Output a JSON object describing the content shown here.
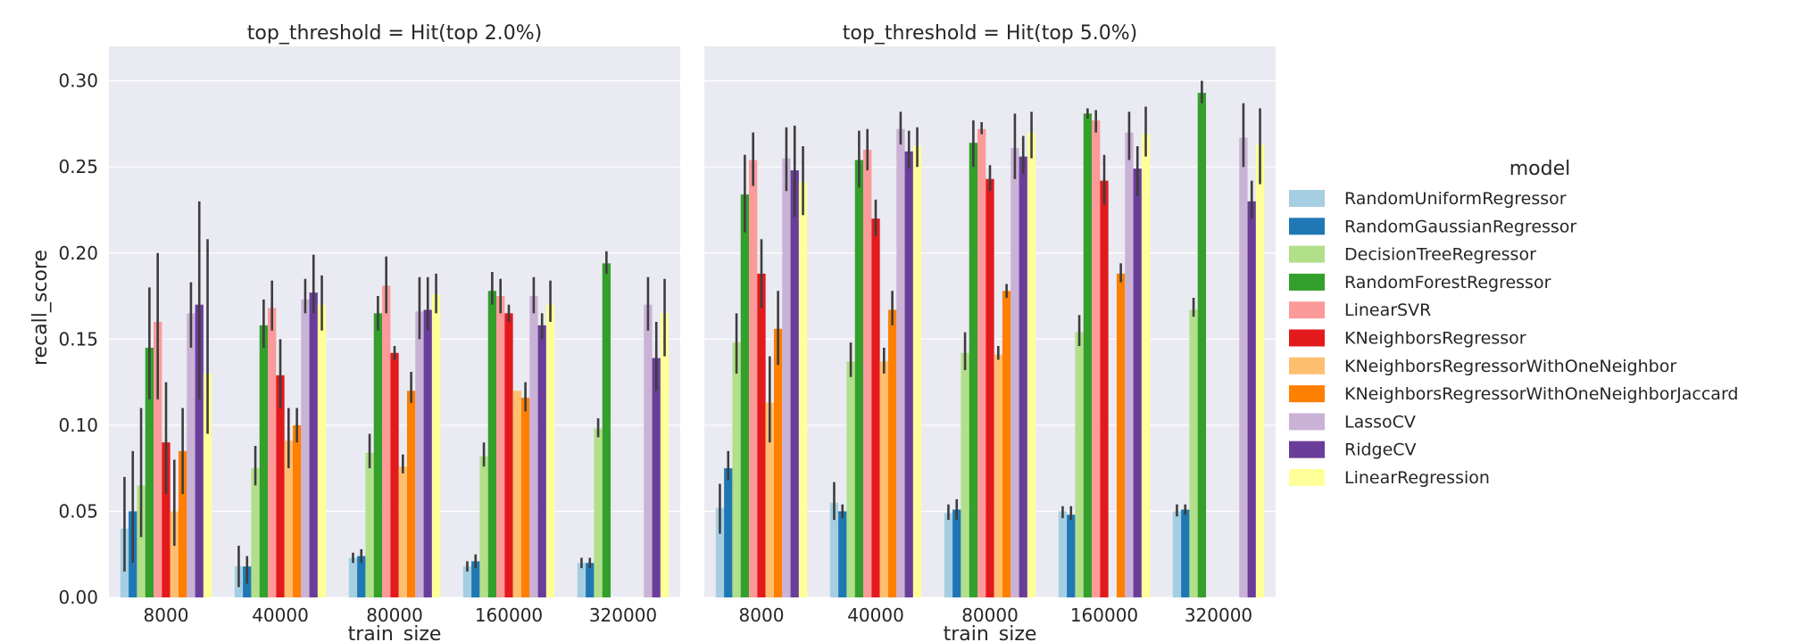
{
  "chart_data": {
    "type": "bar",
    "xlabel": "train_size",
    "ylabel": "recall_score",
    "ylim": [
      0,
      0.32
    ],
    "yticks": [
      "0.00",
      "0.05",
      "0.10",
      "0.15",
      "0.20",
      "0.25",
      "0.30"
    ],
    "ytick_values": [
      0,
      0.05,
      0.1,
      0.15,
      0.2,
      0.25,
      0.3
    ],
    "categories": [
      "8000",
      "40000",
      "80000",
      "160000",
      "320000"
    ],
    "grid": true,
    "legend": {
      "title": "model",
      "position": "right",
      "entries": [
        {
          "name": "RandomUniformRegressor",
          "color": "#a6cee3"
        },
        {
          "name": "RandomGaussianRegressor",
          "color": "#1f78b4"
        },
        {
          "name": "DecisionTreeRegressor",
          "color": "#b2df8a"
        },
        {
          "name": "RandomForestRegressor",
          "color": "#33a02c"
        },
        {
          "name": "LinearSVR",
          "color": "#fb9a99"
        },
        {
          "name": "KNeighborsRegressor",
          "color": "#e31a1c"
        },
        {
          "name": "KNeighborsRegressorWithOneNeighbor",
          "color": "#fdbf6f"
        },
        {
          "name": "KNeighborsRegressorWithOneNeighborJaccard",
          "color": "#ff7f00"
        },
        {
          "name": "LassoCV",
          "color": "#cab2d6"
        },
        {
          "name": "RidgeCV",
          "color": "#6a3d9a"
        },
        {
          "name": "LinearRegression",
          "color": "#ffff99"
        }
      ]
    },
    "panels": [
      {
        "title": "top_threshold = Hit(top 2.0%)",
        "series_values": [
          [
            0.04,
            0.018,
            0.023,
            0.018,
            0.02
          ],
          [
            0.05,
            0.018,
            0.024,
            0.021,
            0.02
          ],
          [
            0.065,
            0.075,
            0.084,
            0.082,
            0.098
          ],
          [
            0.145,
            0.158,
            0.165,
            0.178,
            0.194
          ],
          [
            0.16,
            0.168,
            0.181,
            0.175,
            null
          ],
          [
            0.09,
            0.129,
            0.142,
            0.165,
            null
          ],
          [
            0.05,
            0.091,
            0.076,
            0.12,
            null
          ],
          [
            0.085,
            0.1,
            0.12,
            0.116,
            null
          ],
          [
            0.165,
            0.173,
            0.166,
            0.175,
            0.17
          ],
          [
            0.17,
            0.177,
            0.167,
            0.158,
            0.139
          ],
          [
            0.13,
            0.17,
            0.176,
            0.17,
            0.165
          ]
        ],
        "series_errors": [
          [
            [
              0.015,
              0.07
            ],
            [
              0.006,
              0.03
            ],
            [
              0.02,
              0.026
            ],
            [
              0.015,
              0.021
            ],
            [
              0.017,
              0.023
            ]
          ],
          [
            [
              0.02,
              0.085
            ],
            [
              0.008,
              0.024
            ],
            [
              0.02,
              0.028
            ],
            [
              0.017,
              0.025
            ],
            [
              0.017,
              0.023
            ]
          ],
          [
            [
              0.035,
              0.11
            ],
            [
              0.065,
              0.088
            ],
            [
              0.075,
              0.095
            ],
            [
              0.076,
              0.09
            ],
            [
              0.093,
              0.104
            ]
          ],
          [
            [
              0.115,
              0.18
            ],
            [
              0.145,
              0.173
            ],
            [
              0.155,
              0.175
            ],
            [
              0.17,
              0.189
            ],
            [
              0.188,
              0.201
            ]
          ],
          [
            [
              0.115,
              0.2
            ],
            [
              0.155,
              0.184
            ],
            [
              0.165,
              0.198
            ],
            [
              0.165,
              0.185
            ],
            null
          ],
          [
            [
              0.06,
              0.125
            ],
            [
              0.11,
              0.15
            ],
            [
              0.138,
              0.146
            ],
            [
              0.16,
              0.17
            ],
            null
          ],
          [
            [
              0.03,
              0.08
            ],
            [
              0.075,
              0.11
            ],
            [
              0.072,
              0.083
            ],
            [
              0.12,
              0.12
            ],
            null
          ],
          [
            [
              0.06,
              0.11
            ],
            [
              0.09,
              0.11
            ],
            [
              0.113,
              0.131
            ],
            [
              0.108,
              0.125
            ],
            null
          ],
          [
            [
              0.145,
              0.183
            ],
            [
              0.165,
              0.185
            ],
            [
              0.15,
              0.186
            ],
            [
              0.165,
              0.186
            ],
            [
              0.155,
              0.186
            ]
          ],
          [
            [
              0.115,
              0.23
            ],
            [
              0.165,
              0.199
            ],
            [
              0.155,
              0.186
            ],
            [
              0.15,
              0.165
            ],
            [
              0.12,
              0.16
            ]
          ],
          [
            [
              0.095,
              0.208
            ],
            [
              0.155,
              0.187
            ],
            [
              0.165,
              0.188
            ],
            [
              0.16,
              0.184
            ],
            [
              0.14,
              0.185
            ]
          ]
        ]
      },
      {
        "title": "top_threshold = Hit(top 5.0%)",
        "series_values": [
          [
            0.052,
            0.055,
            0.049,
            0.05,
            0.05
          ],
          [
            0.075,
            0.05,
            0.051,
            0.048,
            0.051
          ],
          [
            0.148,
            0.137,
            0.142,
            0.154,
            0.167
          ],
          [
            0.234,
            0.254,
            0.264,
            0.281,
            0.293
          ],
          [
            0.254,
            0.26,
            0.272,
            0.277,
            null
          ],
          [
            0.188,
            0.22,
            0.243,
            0.242,
            null
          ],
          [
            0.113,
            0.137,
            0.141,
            null,
            null
          ],
          [
            0.156,
            0.167,
            0.178,
            0.188,
            null
          ],
          [
            0.255,
            0.272,
            0.261,
            0.27,
            0.267
          ],
          [
            0.248,
            0.259,
            0.256,
            0.249,
            0.23
          ],
          [
            0.241,
            0.262,
            0.27,
            0.269,
            0.263
          ]
        ],
        "series_errors": [
          [
            [
              0.037,
              0.066
            ],
            [
              0.045,
              0.067
            ],
            [
              0.045,
              0.054
            ],
            [
              0.046,
              0.053
            ],
            [
              0.047,
              0.054
            ]
          ],
          [
            [
              0.068,
              0.085
            ],
            [
              0.046,
              0.054
            ],
            [
              0.045,
              0.057
            ],
            [
              0.045,
              0.053
            ],
            [
              0.048,
              0.054
            ]
          ],
          [
            [
              0.13,
              0.165
            ],
            [
              0.128,
              0.148
            ],
            [
              0.132,
              0.154
            ],
            [
              0.146,
              0.164
            ],
            [
              0.163,
              0.174
            ]
          ],
          [
            [
              0.212,
              0.257
            ],
            [
              0.238,
              0.271
            ],
            [
              0.25,
              0.277
            ],
            [
              0.278,
              0.284
            ],
            [
              0.287,
              0.3
            ]
          ],
          [
            [
              0.239,
              0.27
            ],
            [
              0.248,
              0.272
            ],
            [
              0.269,
              0.276
            ],
            [
              0.27,
              0.283
            ],
            null
          ],
          [
            [
              0.168,
              0.208
            ],
            [
              0.21,
              0.231
            ],
            [
              0.236,
              0.251
            ],
            [
              0.228,
              0.257
            ],
            null
          ],
          [
            [
              0.09,
              0.14
            ],
            [
              0.13,
              0.145
            ],
            [
              0.138,
              0.146
            ],
            null,
            null
          ],
          [
            [
              0.135,
              0.178
            ],
            [
              0.158,
              0.178
            ],
            [
              0.174,
              0.182
            ],
            [
              0.183,
              0.194
            ],
            null
          ],
          [
            [
              0.236,
              0.273
            ],
            [
              0.263,
              0.282
            ],
            [
              0.243,
              0.281
            ],
            [
              0.254,
              0.282
            ],
            [
              0.25,
              0.287
            ]
          ],
          [
            [
              0.221,
              0.274
            ],
            [
              0.249,
              0.271
            ],
            [
              0.246,
              0.268
            ],
            [
              0.233,
              0.262
            ],
            [
              0.22,
              0.242
            ]
          ],
          [
            [
              0.222,
              0.262
            ],
            [
              0.25,
              0.273
            ],
            [
              0.255,
              0.282
            ],
            [
              0.256,
              0.285
            ],
            [
              0.24,
              0.284
            ]
          ]
        ]
      }
    ]
  }
}
